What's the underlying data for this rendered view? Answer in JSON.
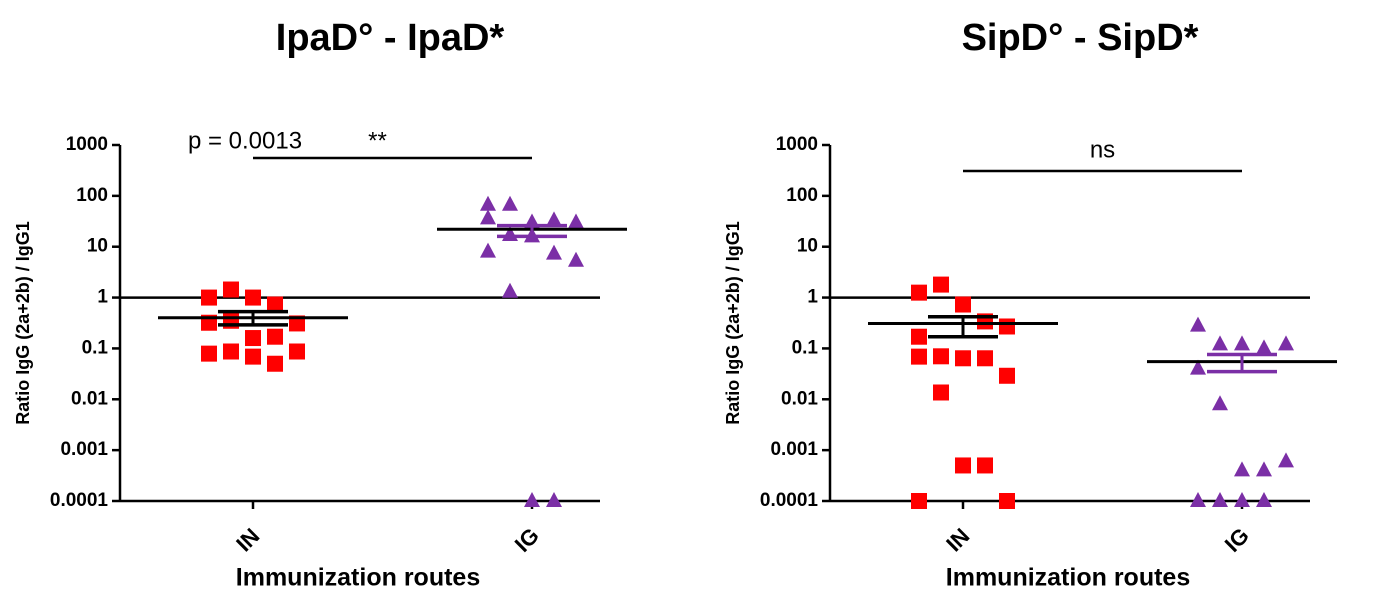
{
  "chart_data": [
    {
      "type": "scatter",
      "title": "IpaD° - IpaD*",
      "ylabel": "Ratio IgG (2a+2b) / IgG1",
      "xlabel": "Immunization routes",
      "categories": [
        "IN",
        "IG"
      ],
      "log_y": true,
      "ylim": [
        0.0001,
        1000
      ],
      "yticks": [
        0.0001,
        0.001,
        0.01,
        0.1,
        1,
        10,
        100,
        1000
      ],
      "reference_line": 1,
      "annotation": "p = 0.0013",
      "significance": "**",
      "series": [
        {
          "color": "#ff0000",
          "marker": "square",
          "error_color": "#000000",
          "values": [
            1.0,
            1.44,
            1.0,
            0.73,
            0.31,
            0.32,
            0.35,
            0.16,
            0.17,
            0.087,
            0.079,
            0.087,
            0.069,
            0.05
          ],
          "mean": 0.4,
          "sem_low": 0.29,
          "sem_high": 0.53
        },
        {
          "color": "#7b2fa6",
          "marker": "triangle",
          "error_color": "#7b2fa6",
          "values": [
            67,
            67,
            30,
            33,
            30,
            36,
            17,
            16,
            7.3,
            5.3,
            8,
            1.3,
            0.0001,
            0.0001
          ],
          "mean": 22,
          "sem_low": 16,
          "sem_high": 26
        }
      ]
    },
    {
      "type": "scatter",
      "title": "SipD° - SipD*",
      "ylabel": "Ratio IgG (2a+2b) / IgG1",
      "xlabel": "Immunization routes",
      "categories": [
        "IN",
        "IG"
      ],
      "log_y": true,
      "ylim": [
        0.0001,
        1000
      ],
      "yticks": [
        0.0001,
        0.001,
        0.01,
        0.1,
        1,
        10,
        100,
        1000
      ],
      "reference_line": 1,
      "significance": "ns",
      "series": [
        {
          "color": "#ff0000",
          "marker": "square",
          "error_color": "#000000",
          "values": [
            1.25,
            1.8,
            0.73,
            0.34,
            0.27,
            0.17,
            0.07,
            0.064,
            0.064,
            0.029,
            0.069,
            0.0136,
            0.0005,
            0.0005,
            0.0001,
            0.0001
          ],
          "mean": 0.31,
          "sem_low": 0.17,
          "sem_high": 0.42
        },
        {
          "color": "#7b2fa6",
          "marker": "triangle",
          "error_color": "#7b2fa6",
          "values": [
            0.28,
            0.12,
            0.12,
            0.1,
            0.12,
            0.04,
            0.008,
            0.0004,
            0.0004,
            0.0006,
            0.0001,
            0.0001,
            0.0001,
            0.0001
          ],
          "mean": 0.055,
          "sem_low": 0.035,
          "sem_high": 0.076
        }
      ]
    }
  ]
}
